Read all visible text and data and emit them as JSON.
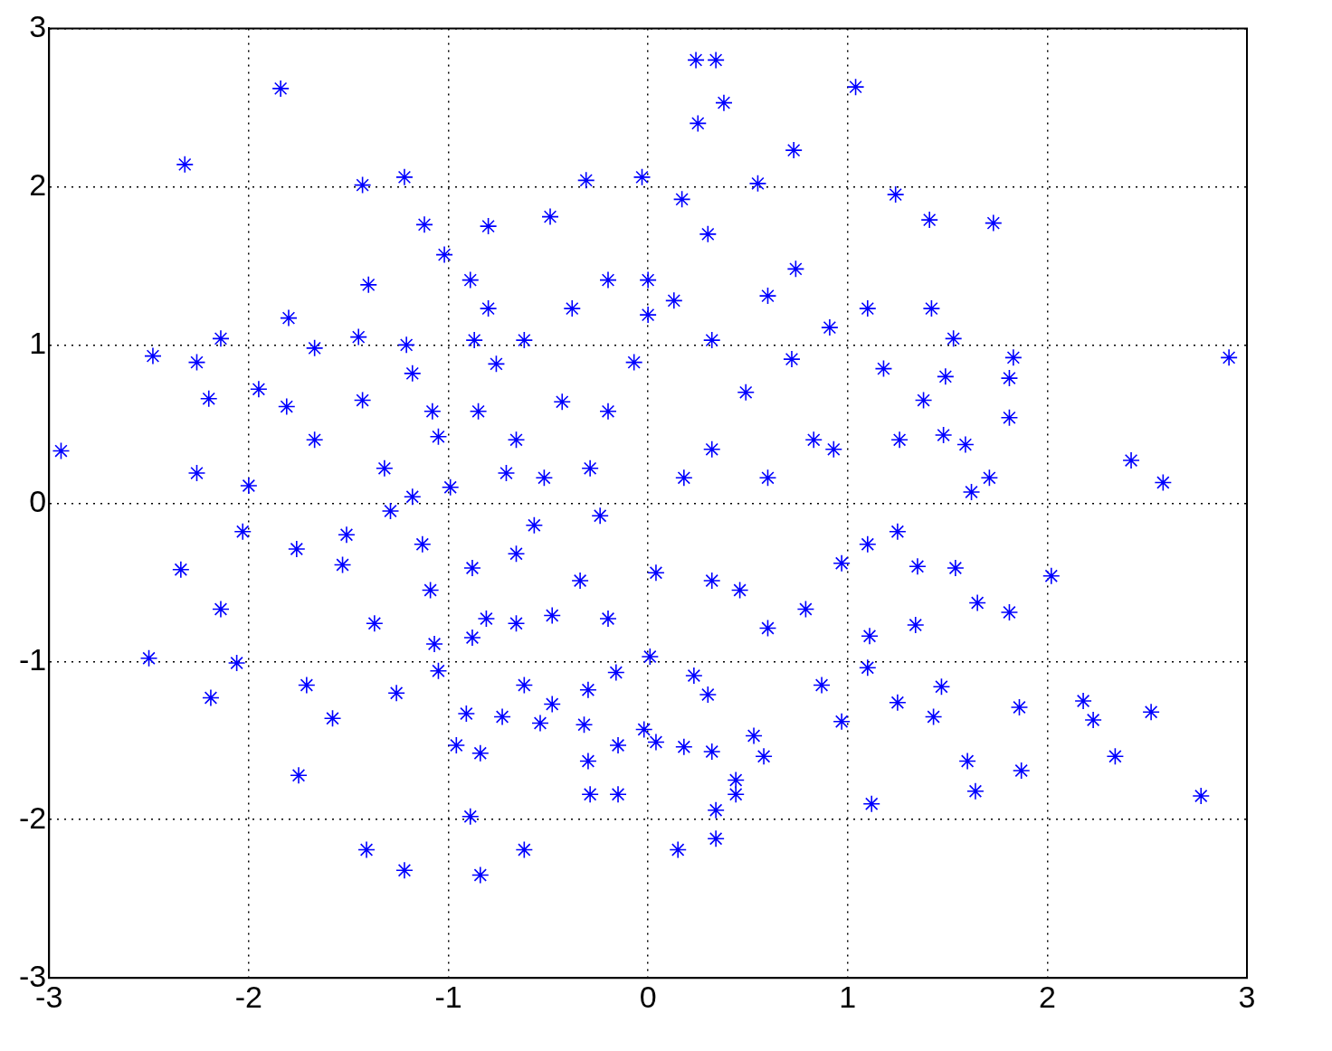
{
  "chart_data": {
    "type": "scatter",
    "xlim": [
      -3,
      3
    ],
    "ylim": [
      -3,
      3
    ],
    "xticks": [
      -3,
      -2,
      -1,
      0,
      1,
      2,
      3
    ],
    "yticks": [
      -3,
      -2,
      -1,
      0,
      1,
      2,
      3
    ],
    "grid": true,
    "legend": false,
    "marker": "cross",
    "series": [
      {
        "color": "#0000ff",
        "x": [
          -2.94,
          -1.84,
          -2.32,
          -2.48,
          -2.26,
          -2.14,
          -2.2,
          -2.26,
          -2.34,
          -2.5,
          -2.19,
          -2.14,
          -2.06,
          -2.03,
          -2.0,
          -1.95,
          -1.81,
          -1.8,
          -1.67,
          -1.67,
          -1.76,
          -1.75,
          -1.71,
          -1.58,
          -1.43,
          -1.22,
          -1.4,
          -1.45,
          -1.43,
          -1.37,
          -1.41,
          -1.22,
          -1.53,
          -1.51,
          -1.32,
          -1.26,
          -1.12,
          -1.02,
          -1.21,
          -0.89,
          -0.8,
          -0.49,
          -0.31,
          -0.03,
          0.24,
          0.34,
          0.25,
          0.38,
          0.17,
          0.3,
          0.55,
          0.73,
          1.04,
          1.24,
          1.41,
          1.73,
          0.74,
          0.6,
          0.0,
          -0.2,
          0.0,
          0.13,
          1.1,
          1.42,
          1.53,
          1.83,
          1.81,
          1.81,
          2.91,
          2.42,
          2.58,
          1.71,
          1.62,
          1.59,
          1.48,
          1.26,
          1.49,
          1.38,
          1.18,
          0.91,
          0.83,
          0.93,
          0.72,
          0.49,
          0.32,
          -0.07,
          -0.2,
          -0.29,
          0.18,
          0.32,
          0.6,
          -0.24,
          0.04,
          0.32,
          0.46,
          0.6,
          0.79,
          0.97,
          1.1,
          1.25,
          1.35,
          1.54,
          1.65,
          1.81,
          2.02,
          1.34,
          1.11,
          1.1,
          1.25,
          1.47,
          1.43,
          1.86,
          1.87,
          1.6,
          1.64,
          2.18,
          2.23,
          2.52,
          2.34,
          2.77,
          1.12,
          0.97,
          0.87,
          0.53,
          0.58,
          0.44,
          0.44,
          0.34,
          0.34,
          0.15,
          0.18,
          0.32,
          0.3,
          0.23,
          0.01,
          0.04,
          -0.02,
          -0.15,
          -0.15,
          -0.29,
          -0.3,
          -0.32,
          -0.3,
          -0.16,
          -0.48,
          -0.54,
          -0.62,
          -0.84,
          -0.89,
          -0.84,
          -0.96,
          -0.91,
          -1.05,
          -1.07,
          -0.88,
          -0.81,
          -0.66,
          -0.48,
          -0.73,
          -0.62,
          -0.88,
          -1.09,
          -1.13,
          -0.99,
          -1.18,
          -1.29,
          -1.05,
          -1.08,
          -0.85,
          -0.71,
          -0.66,
          -0.57,
          -0.52,
          -0.43,
          -0.38,
          -0.62,
          -0.76,
          -0.8,
          -0.87,
          -1.18,
          -0.34,
          -0.2,
          -0.66
        ],
        "values": [
          0.33,
          2.62,
          2.14,
          0.93,
          0.89,
          1.04,
          0.66,
          0.19,
          -0.42,
          -0.98,
          -1.23,
          -0.67,
          -1.01,
          -0.18,
          0.11,
          0.72,
          0.61,
          1.17,
          0.98,
          0.4,
          -0.29,
          -1.72,
          -1.15,
          -1.36,
          2.01,
          2.06,
          1.38,
          1.05,
          0.65,
          -0.76,
          -2.19,
          -2.32,
          -0.39,
          -0.2,
          0.22,
          -1.2,
          1.76,
          1.57,
          1.0,
          1.41,
          1.75,
          1.81,
          2.04,
          2.06,
          2.8,
          2.8,
          2.4,
          2.53,
          1.92,
          1.7,
          2.02,
          2.23,
          2.63,
          1.95,
          1.79,
          1.77,
          1.48,
          1.31,
          1.41,
          1.41,
          1.19,
          1.28,
          1.23,
          1.23,
          1.04,
          0.92,
          0.79,
          0.54,
          0.92,
          0.27,
          0.13,
          0.16,
          0.07,
          0.37,
          0.43,
          0.4,
          0.8,
          0.65,
          0.85,
          1.11,
          0.4,
          0.34,
          0.91,
          0.7,
          1.03,
          0.89,
          0.58,
          0.22,
          0.16,
          0.34,
          0.16,
          -0.08,
          -0.44,
          -0.49,
          -0.55,
          -0.79,
          -0.67,
          -0.38,
          -0.26,
          -0.18,
          -0.4,
          -0.41,
          -0.63,
          -0.69,
          -0.46,
          -0.77,
          -0.84,
          -1.04,
          -1.26,
          -1.16,
          -1.35,
          -1.29,
          -1.69,
          -1.63,
          -1.82,
          -1.25,
          -1.37,
          -1.32,
          -1.6,
          -1.85,
          -1.9,
          -1.38,
          -1.15,
          -1.47,
          -1.6,
          -1.75,
          -1.84,
          -1.94,
          -2.12,
          -2.19,
          -1.54,
          -1.57,
          -1.21,
          -1.09,
          -0.97,
          -1.51,
          -1.43,
          -1.53,
          -1.84,
          -1.84,
          -1.63,
          -1.4,
          -1.18,
          -1.07,
          -1.27,
          -1.39,
          -2.19,
          -2.35,
          -1.98,
          -1.58,
          -1.53,
          -1.33,
          -1.06,
          -0.89,
          -0.85,
          -0.73,
          -0.76,
          -0.71,
          -1.35,
          -1.15,
          -0.41,
          -0.55,
          -0.26,
          0.1,
          0.04,
          -0.05,
          0.42,
          0.58,
          0.58,
          0.19,
          0.4,
          -0.14,
          0.16,
          0.64,
          1.23,
          1.03,
          0.88,
          1.23,
          1.03,
          0.82,
          -0.49,
          -0.73,
          -0.32
        ]
      }
    ]
  }
}
